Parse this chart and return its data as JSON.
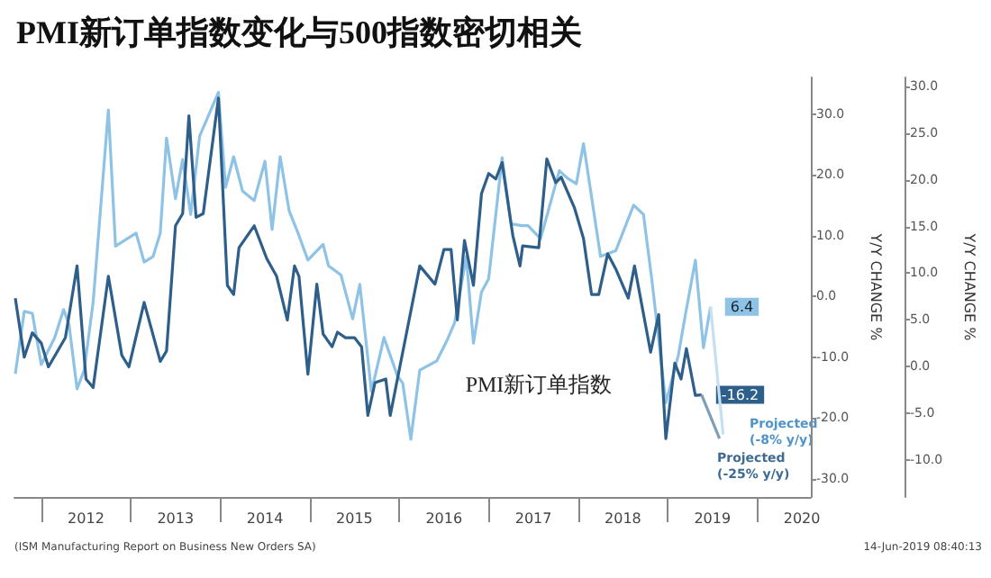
{
  "chart_data": {
    "type": "line",
    "title": "PMI新订单指数变化与500指数密切相关",
    "ylabel": "Y/Y CHANGE %",
    "y2label": "Y/Y CHANGE %",
    "xlim": [
      2011.7,
      2020.6
    ],
    "xticks": [
      {
        "value": 2012,
        "label": null
      },
      {
        "value": 2012.5,
        "label": "2012"
      },
      {
        "value": 2013,
        "label": null
      },
      {
        "value": 2013.5,
        "label": "2013"
      },
      {
        "value": 2014,
        "label": null
      },
      {
        "value": 2014.5,
        "label": "2014"
      },
      {
        "value": 2015,
        "label": null
      },
      {
        "value": 2015.5,
        "label": "2015"
      },
      {
        "value": 2016,
        "label": null
      },
      {
        "value": 2016.5,
        "label": "2016"
      },
      {
        "value": 2017,
        "label": null
      },
      {
        "value": 2017.5,
        "label": "2017"
      },
      {
        "value": 2018,
        "label": null
      },
      {
        "value": 2018.5,
        "label": "2018"
      },
      {
        "value": 2019,
        "label": null
      },
      {
        "value": 2019.5,
        "label": "2019"
      },
      {
        "value": 2020,
        "label": null
      },
      {
        "value": 2020.5,
        "label": "2020"
      }
    ],
    "ylim": [
      -33,
      36
    ],
    "yticks": [
      {
        "value": -30,
        "label": "-30.0"
      },
      {
        "value": -20,
        "label": "-20.0"
      },
      {
        "value": -10,
        "label": "-10.0"
      },
      {
        "value": 0,
        "label": "0.0"
      },
      {
        "value": 10,
        "label": "10.0"
      },
      {
        "value": 20,
        "label": "20.0"
      },
      {
        "value": 30,
        "label": "30.0"
      }
    ],
    "y2lim": [
      -14,
      31
    ],
    "y2ticks": [
      {
        "value": -10,
        "label": "-10.0"
      },
      {
        "value": -5,
        "label": "-5.0"
      },
      {
        "value": 0,
        "label": "0.0"
      },
      {
        "value": 5,
        "label": "5.0"
      },
      {
        "value": 10,
        "label": "10.0"
      },
      {
        "value": 15,
        "label": "15.0"
      },
      {
        "value": 20,
        "label": "20.0"
      },
      {
        "value": 25,
        "label": "25.0"
      },
      {
        "value": 30,
        "label": "30.0"
      }
    ],
    "series": [
      {
        "axis": "y2",
        "color": "#8fc3e6",
        "x": [
          2011.71,
          2011.81,
          2011.9,
          2012.0,
          2012.15,
          2012.25,
          2012.31,
          2012.4,
          2012.48,
          2012.58,
          2012.75,
          2012.83,
          2013.06,
          2013.15,
          2013.25,
          2013.33,
          2013.4,
          2013.5,
          2013.58,
          2013.67,
          2013.77,
          2013.98,
          2014.06,
          2014.15,
          2014.25,
          2014.38,
          2014.5,
          2014.58,
          2014.67,
          2014.77,
          2014.87,
          2014.98,
          2015.15,
          2015.21,
          2015.35,
          2015.48,
          2015.56,
          2015.69,
          2015.83,
          2015.98,
          2016.04,
          2016.13,
          2016.23,
          2016.42,
          2016.54,
          2016.62,
          2016.75,
          2016.83,
          2016.92,
          2017.0,
          2017.15,
          2017.25,
          2017.37,
          2017.44,
          2017.58,
          2017.79,
          2017.88,
          2017.98,
          2018.06,
          2018.25,
          2018.42,
          2018.62,
          2018.73,
          2018.83,
          2018.98,
          2019.12,
          2019.19,
          2019.31,
          2019.4,
          2019.48
        ],
        "values": [
          -0.8,
          5.9,
          5.7,
          0.2,
          3.1,
          6.1,
          4.5,
          -2.4,
          -0.4,
          6.9,
          27.5,
          12.9,
          14.3,
          11.2,
          11.8,
          14.3,
          24.5,
          18,
          22.2,
          16.3,
          24.7,
          29.4,
          19.2,
          22.5,
          18.8,
          17.8,
          22,
          14.7,
          22.5,
          16.7,
          14.3,
          11.4,
          13.1,
          10.8,
          9.8,
          5.1,
          8.8,
          -2.7,
          3.1,
          -1,
          -1.8,
          -7.8,
          -0.4,
          0.6,
          2.9,
          4.7,
          11.8,
          2.5,
          8,
          9.4,
          22.4,
          15.3,
          15.1,
          15.1,
          13.7,
          21,
          20.2,
          19.6,
          23.9,
          11.8,
          12.4,
          17.3,
          16.3,
          8.8,
          -3.9,
          1.2,
          5.1,
          11.4,
          2,
          6.4
        ],
        "value_labels": [
          null,
          null,
          null,
          null,
          null,
          null,
          null,
          null,
          null,
          null,
          null,
          null,
          null,
          null,
          null,
          null,
          null,
          null,
          null,
          null,
          null,
          null,
          null,
          null,
          null,
          null,
          null,
          null,
          null,
          null,
          null,
          null,
          null,
          null,
          null,
          null,
          null,
          null,
          null,
          null,
          null,
          null,
          null,
          null,
          null,
          null,
          null,
          null,
          null,
          null,
          null,
          null,
          null,
          null,
          null,
          null,
          null,
          null,
          null,
          null,
          null,
          null,
          null,
          null,
          null,
          null,
          null,
          null,
          null,
          "6.4"
        ]
      },
      {
        "axis": "y2",
        "color": "#c5e0f0",
        "x": [
          2019.48,
          2019.62
        ],
        "values": [
          6.4,
          -7.3
        ]
      },
      {
        "name": "PMI新订单指数",
        "axis": "y",
        "color": "#2e5f8a",
        "x": [
          2011.71,
          2011.81,
          2011.9,
          2012.0,
          2012.08,
          2012.27,
          2012.4,
          2012.5,
          2012.58,
          2012.75,
          2012.9,
          2012.98,
          2013.15,
          2013.33,
          2013.4,
          2013.5,
          2013.58,
          2013.65,
          2013.73,
          2013.81,
          2013.98,
          2014.08,
          2014.15,
          2014.21,
          2014.38,
          2014.52,
          2014.63,
          2014.75,
          2014.83,
          2014.88,
          2014.98,
          2015.08,
          2015.15,
          2015.25,
          2015.31,
          2015.4,
          2015.5,
          2015.58,
          2015.65,
          2015.73,
          2015.85,
          2015.9,
          2016.23,
          2016.4,
          2016.5,
          2016.58,
          2016.65,
          2016.73,
          2016.83,
          2016.92,
          2017.0,
          2017.08,
          2017.15,
          2017.27,
          2017.35,
          2017.38,
          2017.56,
          2017.65,
          2017.75,
          2017.81,
          2017.96,
          2018.06,
          2018.15,
          2018.23,
          2018.33,
          2018.42,
          2018.56,
          2018.63,
          2018.81,
          2018.9,
          2018.98,
          2019.08,
          2019.15,
          2019.21,
          2019.31,
          2019.38
        ],
        "values": [
          -0.3,
          -10,
          -6,
          -7.7,
          -11.6,
          -6.8,
          5,
          -13.6,
          -15,
          3.3,
          -9.7,
          -11.6,
          -1,
          -10.7,
          -9,
          11.6,
          13.6,
          29.7,
          13,
          13.6,
          32.6,
          1.8,
          0.3,
          8,
          11.6,
          6.2,
          3.3,
          -3.9,
          5,
          3.3,
          -12.8,
          2,
          -6.2,
          -8.3,
          -5.9,
          -6.8,
          -6.8,
          -8.3,
          -19.6,
          -14.2,
          -13.6,
          -19.6,
          5,
          2,
          7.7,
          7.7,
          -3.9,
          9.2,
          1.8,
          16.9,
          20.2,
          19.3,
          22,
          10,
          5,
          8.3,
          8,
          22.6,
          18.7,
          19.6,
          14.5,
          9.5,
          0.3,
          0.3,
          7,
          4.5,
          -0.3,
          5,
          -9.2,
          -3,
          -23.4,
          -11,
          -13.6,
          -8.6,
          -16.3,
          -16.2
        ],
        "value_labels": [
          null,
          null,
          null,
          null,
          null,
          null,
          null,
          null,
          null,
          null,
          null,
          null,
          null,
          null,
          null,
          null,
          null,
          null,
          null,
          null,
          null,
          null,
          null,
          null,
          null,
          null,
          null,
          null,
          null,
          null,
          null,
          null,
          null,
          null,
          null,
          null,
          null,
          null,
          null,
          null,
          null,
          null,
          null,
          null,
          null,
          null,
          null,
          null,
          null,
          null,
          null,
          null,
          null,
          null,
          null,
          null,
          null,
          null,
          null,
          null,
          null,
          null,
          null,
          null,
          null,
          null,
          null,
          null,
          null,
          null,
          null,
          null,
          null,
          null,
          null,
          "-16.2"
        ]
      },
      {
        "axis": "y",
        "color": "#7f9fb8",
        "x": [
          2019.38,
          2019.58
        ],
        "values": [
          -16.2,
          -23.4
        ]
      }
    ],
    "annotations": [
      "Projected (-8% y/y)",
      "Projected (-25% y/y)",
      "(ISM Manufacturing Report on Business New Orders SA)",
      "14-Jun-2019 08:40:13"
    ],
    "grid": false,
    "legend": false,
    "marker": "none",
    "line_style": "solid"
  }
}
